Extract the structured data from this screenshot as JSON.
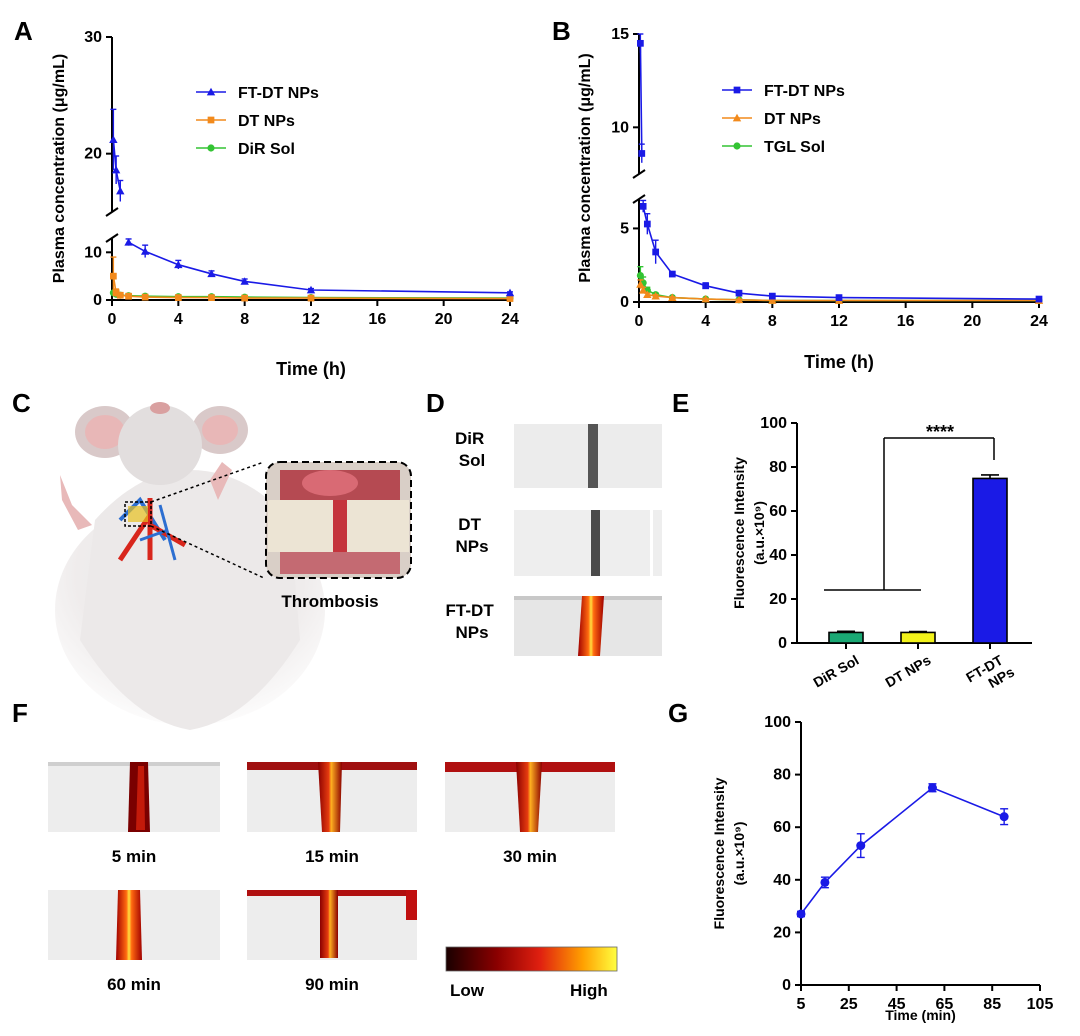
{
  "panel_labels": {
    "A": "A",
    "B": "B",
    "C": "C",
    "D": "D",
    "E": "E",
    "F": "F",
    "G": "G"
  },
  "colors": {
    "blue": "#1a1ae6",
    "orange": "#f28a1c",
    "green": "#33c433",
    "teal": "#1aa874",
    "yellow": "#f2f21a",
    "vessel_red": "#d42a12"
  },
  "chart_data": [
    {
      "id": "A",
      "type": "line",
      "xlabel": "Time (h)",
      "ylabel": "Plasma concentration (μg/mL)",
      "xticks": [
        "0",
        "4",
        "8",
        "12",
        "16",
        "20",
        "24"
      ],
      "yticks_lower": [
        "0",
        "10"
      ],
      "yticks_upper": [
        "20",
        "30"
      ],
      "xlim": [
        0,
        24
      ],
      "y_segments": [
        [
          0,
          13
        ],
        [
          15,
          30
        ]
      ],
      "series": [
        {
          "name": "FT-DT NPs",
          "color": "#1a1ae6",
          "marker": "triangle",
          "x": [
            0.083,
            0.25,
            0.5,
            1,
            2,
            4,
            6,
            8,
            12,
            24
          ],
          "y": [
            21.2,
            18.6,
            16.8,
            12.1,
            10.2,
            7.4,
            5.5,
            3.9,
            2.1,
            1.5
          ],
          "err": [
            2.6,
            1.2,
            0.9,
            0.7,
            1.3,
            0.9,
            0.6,
            0.5,
            0.3,
            0.2
          ]
        },
        {
          "name": "DT NPs",
          "color": "#f28a1c",
          "marker": "square",
          "x": [
            0.083,
            0.25,
            0.5,
            1,
            2,
            4,
            6,
            8,
            12,
            24
          ],
          "y": [
            5.0,
            1.5,
            1.0,
            0.8,
            0.6,
            0.5,
            0.5,
            0.4,
            0.4,
            0.3
          ],
          "err": [
            4.0,
            0.8,
            0.3,
            0.2,
            0.1,
            0.1,
            0.1,
            0.1,
            0.1,
            0.1
          ]
        },
        {
          "name": "DiR Sol",
          "color": "#33c433",
          "marker": "circle",
          "x": [
            0.083,
            0.25,
            0.5,
            1,
            2,
            4,
            6,
            8,
            12,
            24
          ],
          "y": [
            1.5,
            1.2,
            1.0,
            0.9,
            0.8,
            0.7,
            0.7,
            0.6,
            0.5,
            0.4
          ],
          "err": [
            0.3,
            0.2,
            0.2,
            0.1,
            0.1,
            0.1,
            0.1,
            0.1,
            0.1,
            0.1
          ]
        }
      ],
      "legend_position": "top-right"
    },
    {
      "id": "B",
      "type": "line",
      "xlabel": "Time (h)",
      "ylabel": "Plasma concentration (μg/mL)",
      "xticks": [
        "0",
        "4",
        "8",
        "12",
        "16",
        "20",
        "24"
      ],
      "yticks_lower": [
        "0",
        "5"
      ],
      "yticks_upper": [
        "10",
        "15"
      ],
      "xlim": [
        0,
        24
      ],
      "y_segments": [
        [
          0,
          7
        ],
        [
          7.5,
          15
        ]
      ],
      "series": [
        {
          "name": "FT-DT NPs",
          "color": "#1a1ae6",
          "marker": "square",
          "x": [
            0.083,
            0.167,
            0.25,
            0.5,
            1,
            2,
            4,
            6,
            8,
            12,
            24
          ],
          "y": [
            14.5,
            8.6,
            6.5,
            5.3,
            3.4,
            1.9,
            1.1,
            0.6,
            0.4,
            0.3,
            0.2
          ],
          "err": [
            0.5,
            0.5,
            0.4,
            0.7,
            0.8,
            0.1,
            0.2,
            0.1,
            0.1,
            0.1,
            0.05
          ]
        },
        {
          "name": "DT NPs",
          "color": "#f28a1c",
          "marker": "triangle",
          "x": [
            0.083,
            0.25,
            0.5,
            1,
            2,
            4,
            6,
            8,
            12,
            24
          ],
          "y": [
            1.2,
            0.8,
            0.5,
            0.4,
            0.3,
            0.2,
            0.15,
            0.1,
            0.1,
            0.1
          ],
          "err": [
            0.3,
            0.2,
            0.1,
            0.1,
            0.05,
            0.05,
            0.05,
            0.05,
            0.05,
            0.05
          ]
        },
        {
          "name": "TGL Sol",
          "color": "#33c433",
          "marker": "circle",
          "x": [
            0.083,
            0.25,
            0.5,
            1,
            2,
            4,
            6,
            8,
            12,
            24
          ],
          "y": [
            1.8,
            1.3,
            0.8,
            0.5,
            0.3,
            0.2,
            0.15,
            0.1,
            0.1,
            0.1
          ],
          "err": [
            0.6,
            0.4,
            0.2,
            0.1,
            0.05,
            0.05,
            0.05,
            0.05,
            0.05,
            0.05
          ]
        }
      ],
      "legend_position": "top-right"
    },
    {
      "id": "E",
      "type": "bar",
      "ylabel_line1": "Fluorescence Intensity",
      "ylabel_line2": "(a.u.×10⁹)",
      "categories": [
        "DiR Sol",
        "DT NPs",
        "FT-DT NPs"
      ],
      "category_lines": [
        [
          "DiR Sol"
        ],
        [
          "DT NPs"
        ],
        [
          "FT-DT",
          "NPs"
        ]
      ],
      "values": [
        4.8,
        4.8,
        74.8
      ],
      "err": [
        0.5,
        0.4,
        1.6
      ],
      "colors": [
        "#1aa874",
        "#f2f21a",
        "#1a1ae6"
      ],
      "ylim": [
        0,
        100
      ],
      "yticks": [
        "0",
        "20",
        "40",
        "60",
        "80",
        "100"
      ],
      "significance": "****"
    },
    {
      "id": "G",
      "type": "line",
      "xlabel": "Time (min)",
      "ylabel_line1": "Fluorescence Intensity",
      "ylabel_line2": "(a.u.×10⁹)",
      "x": [
        5,
        15,
        30,
        60,
        90
      ],
      "y": [
        27,
        39,
        53,
        75,
        64
      ],
      "err": [
        1.0,
        2.0,
        4.5,
        1.5,
        3.0
      ],
      "color": "#1a1ae6",
      "xlim": [
        5,
        105
      ],
      "ylim": [
        0,
        100
      ],
      "xticks": [
        "5",
        "25",
        "45",
        "65",
        "85",
        "105"
      ],
      "yticks": [
        "0",
        "20",
        "40",
        "60",
        "80",
        "100"
      ]
    }
  ],
  "panel_c": {
    "caption": "Thrombosis"
  },
  "panel_d": {
    "rows": [
      "DiR\nSol",
      "DT\nNPs",
      "FT-DT\nNPs"
    ],
    "row_lines": [
      [
        "DiR",
        "Sol"
      ],
      [
        "DT",
        "NPs"
      ],
      [
        "FT-DT",
        "NPs"
      ]
    ]
  },
  "panel_f": {
    "captions": [
      "5 min",
      "15 min",
      "30 min",
      "60 min",
      "90 min"
    ],
    "scale_low": "Low",
    "scale_high": "High"
  }
}
